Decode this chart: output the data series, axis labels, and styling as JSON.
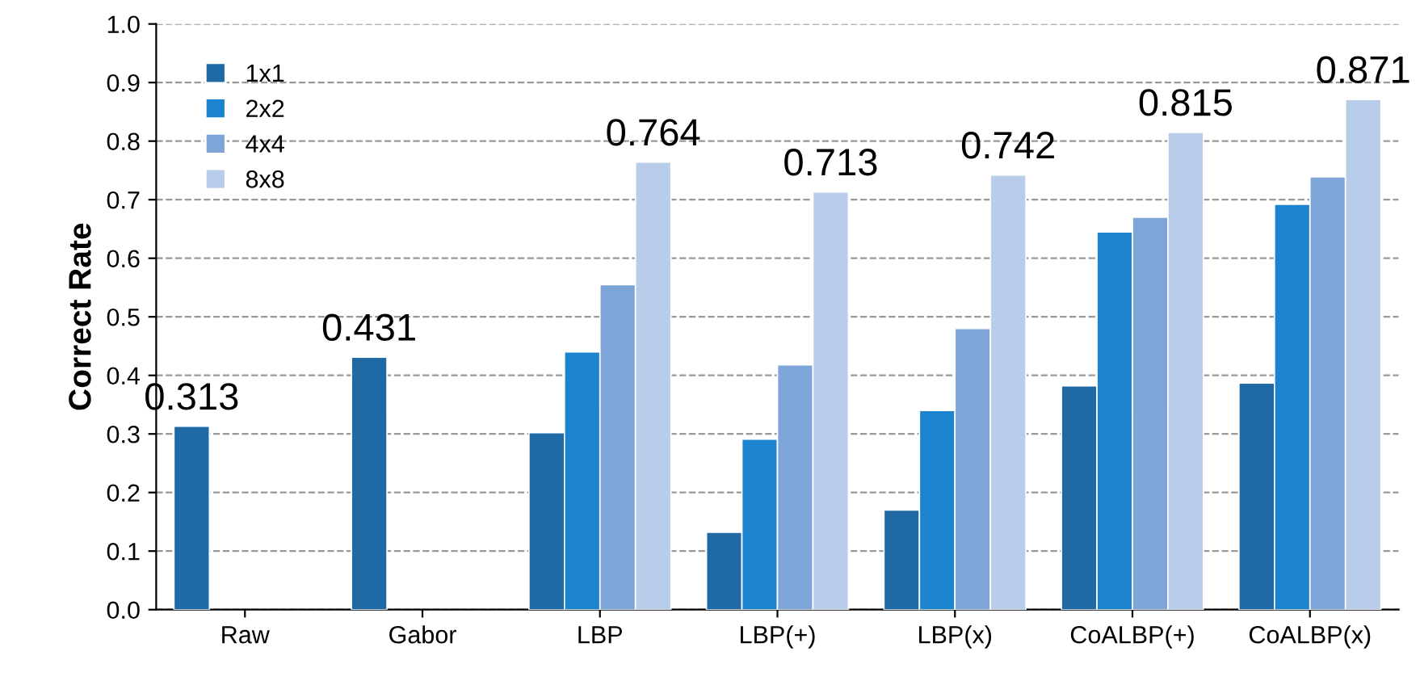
{
  "chart_data": {
    "type": "bar",
    "ylabel": "Correct Rate",
    "categories": [
      "Raw",
      "Gabor",
      "LBP",
      "LBP(+)",
      "LBP(x)",
      "CoALBP(+)",
      "CoALBP(x)"
    ],
    "series": [
      {
        "name": "1x1",
        "color": "#1f6aa5",
        "values": [
          0.313,
          0.431,
          0.302,
          0.132,
          0.17,
          0.382,
          0.387
        ],
        "value_labels": [
          "0.313",
          "0.431",
          null,
          null,
          null,
          null,
          null
        ]
      },
      {
        "name": "2x2",
        "color": "#1c84cf",
        "values": [
          null,
          null,
          0.44,
          0.291,
          0.34,
          0.645,
          0.692
        ],
        "value_labels": [
          null,
          null,
          null,
          null,
          null,
          null,
          null
        ]
      },
      {
        "name": "4x4",
        "color": "#7ea5d8",
        "values": [
          null,
          null,
          0.555,
          0.418,
          0.48,
          0.67,
          0.739
        ],
        "value_labels": [
          null,
          null,
          null,
          null,
          null,
          null,
          null
        ]
      },
      {
        "name": "8x8",
        "color": "#b8cde9",
        "values": [
          null,
          null,
          0.764,
          0.713,
          0.742,
          0.815,
          0.871
        ],
        "value_labels": [
          null,
          null,
          "0.764",
          "0.713",
          "0.742",
          "0.815",
          "0.871"
        ]
      }
    ],
    "ylim": [
      0,
      1.0
    ],
    "yticks": [
      {
        "value": 0,
        "label": "0.0"
      },
      {
        "value": 0.1,
        "label": "0.1"
      },
      {
        "value": 0.2,
        "label": "0.2"
      },
      {
        "value": 0.3,
        "label": "0.3"
      },
      {
        "value": 0.4,
        "label": "0.4"
      },
      {
        "value": 0.5,
        "label": "0.5"
      },
      {
        "value": 0.6,
        "label": "0.6"
      },
      {
        "value": 0.7,
        "label": "0.7"
      },
      {
        "value": 0.8,
        "label": "0.8"
      },
      {
        "value": 0.9,
        "label": "0.9"
      },
      {
        "value": 1.0,
        "label": "1.0"
      }
    ],
    "grid": "y",
    "legend": "top left",
    "marker": "square"
  }
}
